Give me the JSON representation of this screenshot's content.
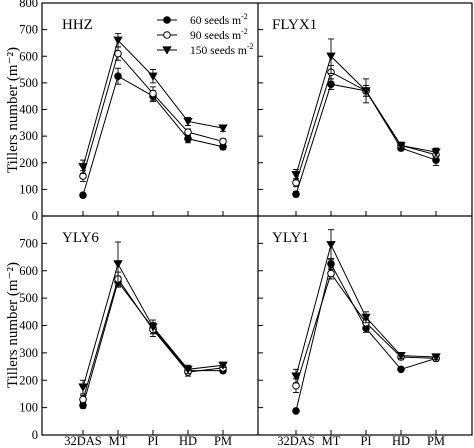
{
  "figure": {
    "ylabel": "Tillers number (m⁻²)",
    "legend": [
      {
        "key": "s60",
        "label": "60 seeds m",
        "sup": "-2"
      },
      {
        "key": "s90",
        "label": "90 seeds m",
        "sup": "-2"
      },
      {
        "key": "s150",
        "label": "150 seeds m",
        "sup": "-2"
      }
    ],
    "legend_position": "top, first panel",
    "colors": {
      "line": "#000000",
      "filled_marker": "#000000",
      "open_marker": "#ffffff"
    }
  },
  "chart_data": [
    {
      "type": "line",
      "title": "HHZ",
      "categories": [
        "32DAS",
        "MT",
        "PI",
        "HD",
        "PM"
      ],
      "ylim": [
        0,
        800
      ],
      "yticks": [
        0,
        100,
        200,
        300,
        400,
        500,
        600,
        700,
        800
      ],
      "series": [
        {
          "name": "60 seeds m-2",
          "marker": "filled-circle",
          "values": [
            78,
            525,
            450,
            290,
            260
          ],
          "errors": [
            8,
            30,
            20,
            15,
            10
          ]
        },
        {
          "name": "90 seeds m-2",
          "marker": "open-circle",
          "values": [
            150,
            610,
            460,
            315,
            280
          ],
          "errors": [
            20,
            25,
            25,
            12,
            10
          ]
        },
        {
          "name": "150 seeds m-2",
          "marker": "filled-triangle-down",
          "values": [
            185,
            660,
            525,
            355,
            330
          ],
          "errors": [
            25,
            25,
            25,
            15,
            12
          ]
        }
      ]
    },
    {
      "type": "line",
      "title": "FLYX1",
      "categories": [
        "32DAS",
        "MT",
        "PI",
        "HD",
        "PM"
      ],
      "ylim": [
        0,
        800
      ],
      "yticks": [
        0,
        100,
        200,
        300,
        400,
        500,
        600,
        700,
        800
      ],
      "series": [
        {
          "name": "60 seeds m-2",
          "marker": "filled-circle",
          "values": [
            82,
            495,
            470,
            255,
            210
          ],
          "errors": [
            10,
            20,
            20,
            10,
            20
          ]
        },
        {
          "name": "90 seeds m-2",
          "marker": "open-circle",
          "values": [
            125,
            540,
            470,
            265,
            230
          ],
          "errors": [
            15,
            25,
            20,
            10,
            15
          ]
        },
        {
          "name": "150 seeds m-2",
          "marker": "filled-triangle-down",
          "values": [
            155,
            600,
            470,
            265,
            240
          ],
          "errors": [
            20,
            65,
            45,
            12,
            15
          ]
        }
      ]
    },
    {
      "type": "line",
      "title": "YLY6",
      "categories": [
        "32DAS",
        "MT",
        "PI",
        "HD",
        "PM"
      ],
      "ylim": [
        0,
        800
      ],
      "yticks": [
        0,
        100,
        200,
        300,
        400,
        500,
        600,
        700
      ],
      "series": [
        {
          "name": "60 seeds m-2",
          "marker": "filled-circle",
          "values": [
            108,
            560,
            390,
            235,
            235
          ],
          "errors": [
            10,
            20,
            20,
            10,
            8
          ]
        },
        {
          "name": "90 seeds m-2",
          "marker": "open-circle",
          "values": [
            130,
            570,
            385,
            230,
            245
          ],
          "errors": [
            15,
            25,
            25,
            15,
            10
          ]
        },
        {
          "name": "150 seeds m-2",
          "marker": "filled-triangle-down",
          "values": [
            175,
            625,
            395,
            240,
            255
          ],
          "errors": [
            25,
            80,
            25,
            15,
            8
          ]
        }
      ]
    },
    {
      "type": "line",
      "title": "YLY1",
      "categories": [
        "32DAS",
        "MT",
        "PI",
        "HD",
        "PM"
      ],
      "ylim": [
        0,
        800
      ],
      "yticks": [
        0,
        100,
        200,
        300,
        400,
        500,
        600,
        700
      ],
      "series": [
        {
          "name": "60 seeds m-2",
          "marker": "filled-circle",
          "values": [
            88,
            625,
            390,
            240,
            280
          ],
          "errors": [
            6,
            20,
            15,
            8,
            10
          ]
        },
        {
          "name": "90 seeds m-2",
          "marker": "open-circle",
          "values": [
            180,
            590,
            410,
            285,
            280
          ],
          "errors": [
            25,
            20,
            15,
            10,
            10
          ]
        },
        {
          "name": "150 seeds m-2",
          "marker": "filled-triangle-down",
          "values": [
            215,
            695,
            430,
            290,
            285
          ],
          "errors": [
            25,
            55,
            20,
            10,
            10
          ]
        }
      ]
    }
  ]
}
